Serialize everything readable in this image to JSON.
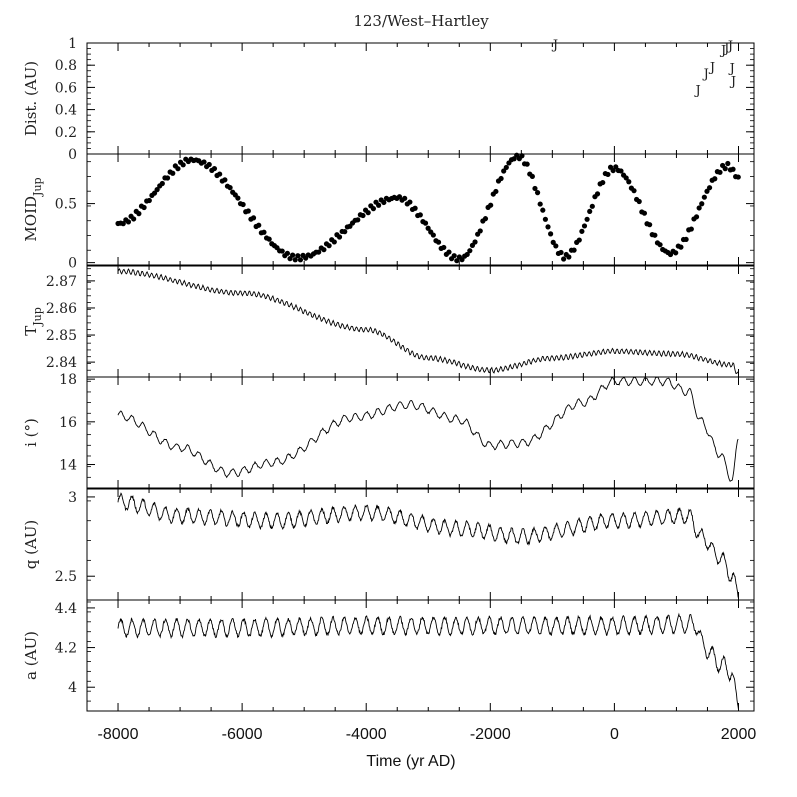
{
  "chart_data": {
    "type": "line",
    "title": "123/West–Hartley",
    "xlabel": "Time (yr AD)",
    "xlim": [
      -8500,
      2250
    ],
    "xticks": [
      -8000,
      -6000,
      -4000,
      -2000,
      0,
      2000
    ],
    "xtick_labels": [
      "-8000",
      "-6000",
      "-4000",
      "-2000",
      "0",
      "2000"
    ],
    "grid": false,
    "panels": [
      {
        "name": "dist",
        "ylabel": "Dist. (AU)",
        "ylim": [
          0,
          1
        ],
        "yticks": [
          0,
          0.2,
          0.4,
          0.6,
          0.8,
          1
        ],
        "ytick_labels": [
          "0",
          "0.2",
          "0.4",
          "0.6",
          "0.8",
          "1"
        ],
        "style": "glyph",
        "glyph": "J",
        "points": [
          [
            -950,
            0.99
          ],
          [
            1350,
            0.58
          ],
          [
            1480,
            0.73
          ],
          [
            1580,
            0.79
          ],
          [
            1760,
            0.94
          ],
          [
            1810,
            0.96
          ],
          [
            1870,
            0.98
          ],
          [
            1900,
            0.78
          ],
          [
            1920,
            0.66
          ]
        ]
      },
      {
        "name": "moid",
        "ylabel": "MOID",
        "ylabel_sub": "Jup",
        "ylim": [
          -0.02,
          0.92
        ],
        "yticks": [
          0,
          0.5
        ],
        "ytick_labels": [
          "0",
          "0.5"
        ],
        "style": "dots",
        "osc": {
          "knots": [
            [
              -8000,
              0.33
            ],
            [
              -6800,
              0.87
            ],
            [
              -5100,
              0.04
            ],
            [
              -3500,
              0.55
            ],
            [
              -2500,
              0.03
            ],
            [
              -1550,
              0.9
            ],
            [
              -800,
              0.05
            ],
            [
              0,
              0.8
            ],
            [
              900,
              0.08
            ],
            [
              1830,
              0.82
            ],
            [
              2000,
              0.72
            ]
          ],
          "step": 42,
          "amp": 0.02,
          "period": 90
        }
      },
      {
        "name": "tjup",
        "ylabel": "T",
        "ylabel_sub": "Jup",
        "ylim": [
          2.8345,
          2.8755
        ],
        "yticks": [
          2.84,
          2.85,
          2.86,
          2.87
        ],
        "ytick_labels": [
          "2.84",
          "2.85",
          "2.86",
          "2.87"
        ],
        "style": "line",
        "osc": {
          "knots": [
            [
              -8000,
              2.8735
            ],
            [
              -6000,
              2.8655
            ],
            [
              -4000,
              2.852
            ],
            [
              -3000,
              2.8415
            ],
            [
              -2000,
              2.837
            ],
            [
              -1000,
              2.8415
            ],
            [
              0,
              2.844
            ],
            [
              1000,
              2.843
            ],
            [
              1900,
              2.839
            ],
            [
              2000,
              2.8355
            ]
          ],
          "step": 12,
          "amp": 0.0009,
          "period": 75
        }
      },
      {
        "name": "incl",
        "ylabel": "i (°)",
        "ylim": [
          12.9,
          18.1
        ],
        "yticks": [
          14,
          16,
          18
        ],
        "ytick_labels": [
          "14",
          "16",
          "18"
        ],
        "style": "line",
        "osc": {
          "knots": [
            [
              -8000,
              16.3
            ],
            [
              -7000,
              14.8
            ],
            [
              -6200,
              13.6
            ],
            [
              -5500,
              14.1
            ],
            [
              -4200,
              16.2
            ],
            [
              -3300,
              16.8
            ],
            [
              -2500,
              16.1
            ],
            [
              -2000,
              14.9
            ],
            [
              -1500,
              15.0
            ],
            [
              -500,
              16.9
            ],
            [
              0,
              17.9
            ],
            [
              800,
              17.9
            ],
            [
              1200,
              17.4
            ],
            [
              1400,
              16.0
            ],
            [
              1700,
              14.5
            ],
            [
              1900,
              13.3
            ],
            [
              2000,
              15.2
            ]
          ],
          "step": 12,
          "amp": 0.18,
          "period": 180
        }
      },
      {
        "name": "q",
        "ylabel": "q (AU)",
        "ylim": [
          2.35,
          3.05
        ],
        "yticks": [
          2.5,
          3
        ],
        "ytick_labels": [
          "2.5",
          "3"
        ],
        "style": "line",
        "osc": {
          "knots": [
            [
              -8000,
              2.97
            ],
            [
              -7000,
              2.88
            ],
            [
              -5500,
              2.85
            ],
            [
              -4000,
              2.9
            ],
            [
              -2500,
              2.8
            ],
            [
              -1500,
              2.75
            ],
            [
              0,
              2.85
            ],
            [
              1200,
              2.88
            ],
            [
              1400,
              2.75
            ],
            [
              1700,
              2.62
            ],
            [
              1900,
              2.5
            ],
            [
              2000,
              2.38
            ]
          ],
          "step": 8,
          "amp": 0.045,
          "period": 180
        }
      },
      {
        "name": "a",
        "ylabel": "a (AU)",
        "ylim": [
          3.88,
          4.44
        ],
        "yticks": [
          4,
          4.2,
          4.4
        ],
        "ytick_labels": [
          "4",
          "4.2",
          "4.4"
        ],
        "style": "line",
        "osc": {
          "knots": [
            [
              -8000,
              4.3
            ],
            [
              -6000,
              4.3
            ],
            [
              -4000,
              4.31
            ],
            [
              -2000,
              4.31
            ],
            [
              0,
              4.31
            ],
            [
              1300,
              4.32
            ],
            [
              1450,
              4.2
            ],
            [
              1700,
              4.12
            ],
            [
              1880,
              4.08
            ],
            [
              2000,
              3.9
            ]
          ],
          "step": 8,
          "amp": 0.042,
          "period": 180
        }
      }
    ]
  }
}
